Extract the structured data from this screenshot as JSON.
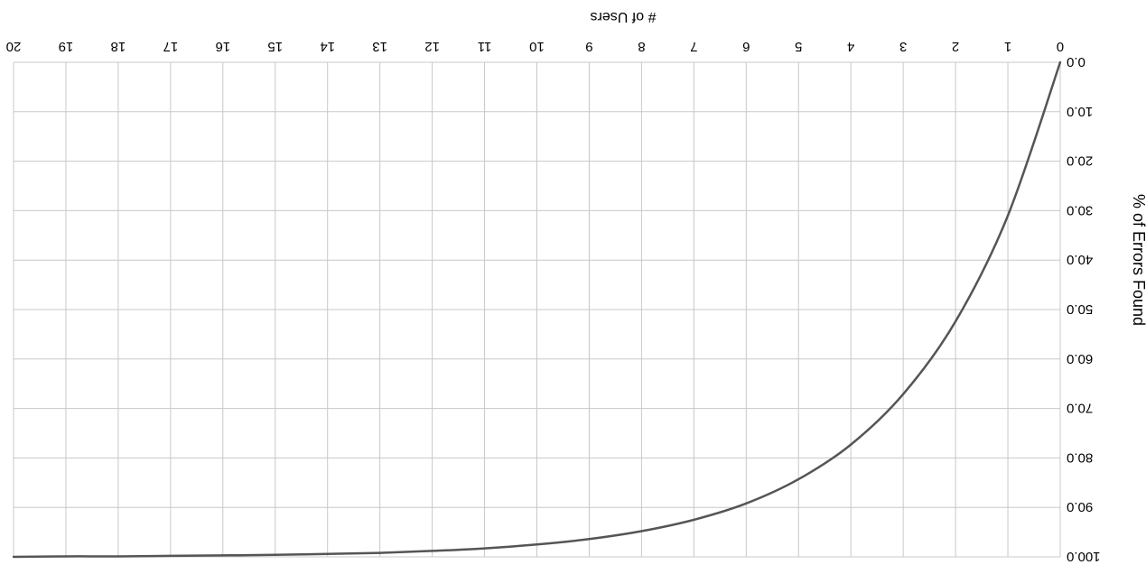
{
  "chart_data": {
    "type": "line",
    "orientation": "rotated 180 degrees",
    "xlabel": "# of Users",
    "ylabel": "% of Errors Found",
    "xlim": [
      0,
      20
    ],
    "ylim": [
      0,
      100
    ],
    "x_ticks": [
      "0",
      "1",
      "2",
      "3",
      "4",
      "5",
      "6",
      "7",
      "8",
      "9",
      "10",
      "11",
      "12",
      "13",
      "14",
      "15",
      "16",
      "17",
      "18",
      "19",
      "20"
    ],
    "y_ticks": [
      "0.0",
      "10.0",
      "20.0",
      "30.0",
      "40.0",
      "50.0",
      "60.0",
      "70.0",
      "80.0",
      "90.0",
      "100.0"
    ],
    "grid": true,
    "legend": "none",
    "series": [
      {
        "x": [
          0,
          1,
          2,
          3,
          4,
          5,
          6,
          7,
          8,
          9,
          10,
          11,
          12,
          13,
          14,
          15,
          16,
          17,
          18,
          19,
          20
        ],
        "values": [
          0.0,
          31.0,
          52.4,
          67.1,
          77.3,
          84.3,
          89.2,
          92.5,
          94.8,
          96.4,
          97.5,
          98.3,
          98.8,
          99.2,
          99.4,
          99.6,
          99.7,
          99.8,
          99.9,
          99.9,
          100.0
        ],
        "color": "#555555"
      }
    ],
    "colors": {
      "grid": "#c8c8c8",
      "line": "#555555",
      "text": "#000000"
    }
  }
}
